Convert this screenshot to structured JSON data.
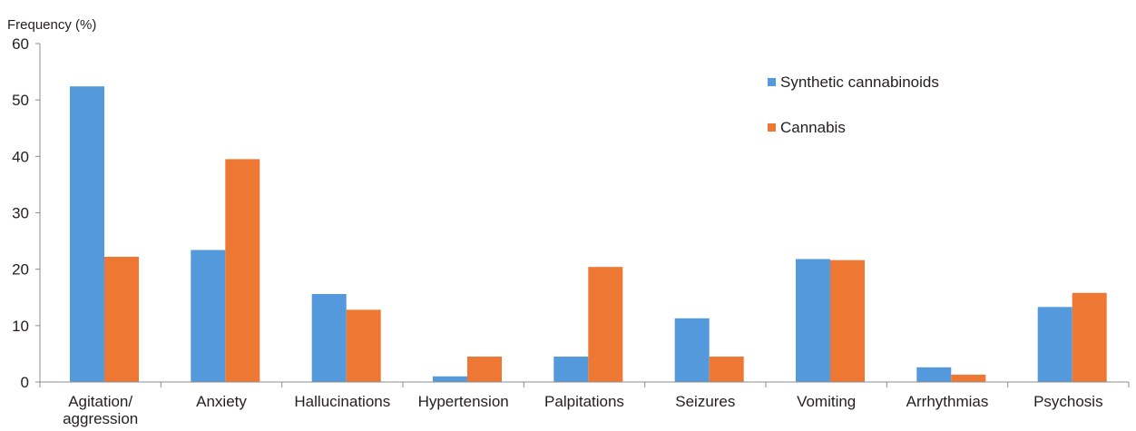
{
  "chart_data": {
    "type": "bar",
    "title": "",
    "xlabel": "",
    "ylabel": "Frequency (%)",
    "ylim": [
      0,
      60
    ],
    "yticks": [
      0,
      10,
      20,
      30,
      40,
      50,
      60
    ],
    "grid": false,
    "legend_position": "top-right",
    "categories": [
      "Agitation/\naggression",
      "Anxiety",
      "Hallucinations",
      "Hypertension",
      "Palpitations",
      "Seizures",
      "Vomiting",
      "Arrhythmias",
      "Psychosis"
    ],
    "series": [
      {
        "name": "Synthetic cannabinoids",
        "color": "#5599dd",
        "values": [
          52.4,
          23.4,
          15.6,
          1.0,
          4.5,
          11.3,
          21.8,
          2.6,
          13.3
        ]
      },
      {
        "name": "Cannabis",
        "color": "#ee7733",
        "values": [
          22.2,
          39.5,
          12.8,
          4.5,
          20.4,
          4.5,
          21.6,
          1.3,
          15.8
        ]
      }
    ]
  }
}
